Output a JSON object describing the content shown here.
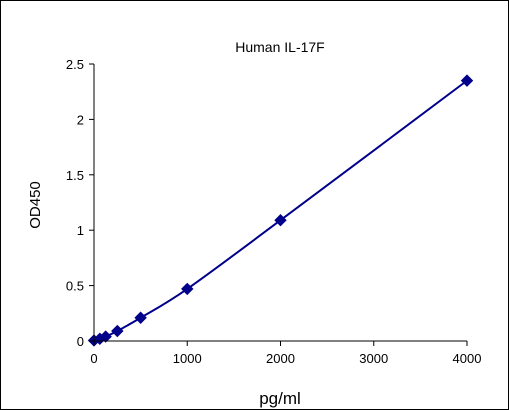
{
  "chart_data": {
    "type": "scatter",
    "title": "Human IL-17F",
    "xlabel": "pg/ml",
    "ylabel": "OD450",
    "xlim": [
      0,
      4000
    ],
    "ylim": [
      0,
      2.5
    ],
    "x_ticks": [
      0,
      1000,
      2000,
      3000,
      4000
    ],
    "x_tick_labels": [
      "0",
      "1000",
      "2000",
      "3000",
      "4000"
    ],
    "y_ticks": [
      0,
      0.5,
      1,
      1.5,
      2,
      2.5
    ],
    "y_tick_labels": [
      "0",
      "0.5",
      "1",
      "1.5",
      "2",
      "2.5"
    ],
    "grid": false,
    "legend": "none",
    "series": [
      {
        "color": "#00008B",
        "marker": "diamond",
        "line": "smooth",
        "points": [
          {
            "x": 0,
            "y": 0.005
          },
          {
            "x": 62.5,
            "y": 0.02
          },
          {
            "x": 125,
            "y": 0.04
          },
          {
            "x": 250,
            "y": 0.09
          },
          {
            "x": 500,
            "y": 0.21
          },
          {
            "x": 1000,
            "y": 0.47
          },
          {
            "x": 2000,
            "y": 1.09
          },
          {
            "x": 4000,
            "y": 2.35
          }
        ]
      }
    ]
  }
}
